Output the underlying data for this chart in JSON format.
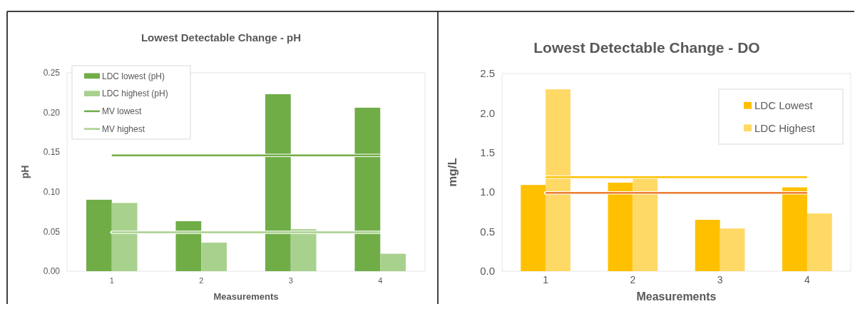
{
  "chart_data": [
    {
      "type": "bar",
      "title": "Lowest Detectable Change  - pH",
      "xlabel": "Measurements",
      "ylabel": "pH",
      "categories": [
        "1",
        "2",
        "3",
        "4"
      ],
      "series": [
        {
          "name": "LDC lowest (pH)",
          "color": "#70ad47",
          "values": [
            0.09,
            0.063,
            0.223,
            0.206
          ]
        },
        {
          "name": "LDC highest (pH)",
          "color": "#a9d18e",
          "values": [
            0.086,
            0.036,
            0.053,
            0.022
          ]
        },
        {
          "name": "MV lowest",
          "type": "line",
          "color": "#70ad47",
          "values": [
            0.146,
            0.146,
            0.146,
            0.146
          ]
        },
        {
          "name": "MV highest",
          "type": "line",
          "color": "#a9d18e",
          "values": [
            0.049,
            0.049,
            0.049,
            0.049
          ]
        }
      ],
      "ylim": [
        0,
        0.25
      ],
      "yticks": [
        {
          "value": 0,
          "label": "0.00"
        },
        {
          "value": 0.05,
          "label": "0.05"
        },
        {
          "value": 0.1,
          "label": "0.10"
        },
        {
          "value": 0.15,
          "label": "0.15"
        },
        {
          "value": 0.2,
          "label": "0.20"
        },
        {
          "value": 0.25,
          "label": "0.25"
        }
      ],
      "legend": "top left",
      "marker": "none"
    },
    {
      "type": "bar",
      "title": "Lowest Detectable Change - DO",
      "xlabel": "Measurements",
      "ylabel": "mg/L",
      "categories": [
        "1",
        "2",
        "3",
        "4"
      ],
      "series": [
        {
          "name": "LDC Lowest",
          "color": "#ffc000",
          "values": [
            1.09,
            1.12,
            0.65,
            1.06
          ]
        },
        {
          "name": "LDC Highest",
          "color": "#ffd966",
          "values": [
            2.3,
            1.19,
            0.54,
            0.73
          ]
        },
        {
          "type": "line",
          "color": "#ffc000",
          "values": [
            1.19,
            1.19,
            1.19,
            1.19
          ]
        },
        {
          "type": "line",
          "color": "#ed7d31",
          "values": [
            0.99,
            0.99,
            0.99,
            0.99
          ]
        }
      ],
      "ylim": [
        0,
        2.5
      ],
      "yticks": [
        {
          "value": 0,
          "label": "0.0"
        },
        {
          "value": 0.5,
          "label": "0.5"
        },
        {
          "value": 1,
          "label": "1.0"
        },
        {
          "value": 1.5,
          "label": "1.5"
        },
        {
          "value": 2,
          "label": "2.0"
        },
        {
          "value": 2.5,
          "label": "2.5"
        }
      ],
      "legend": "top right",
      "marker": "none"
    }
  ]
}
